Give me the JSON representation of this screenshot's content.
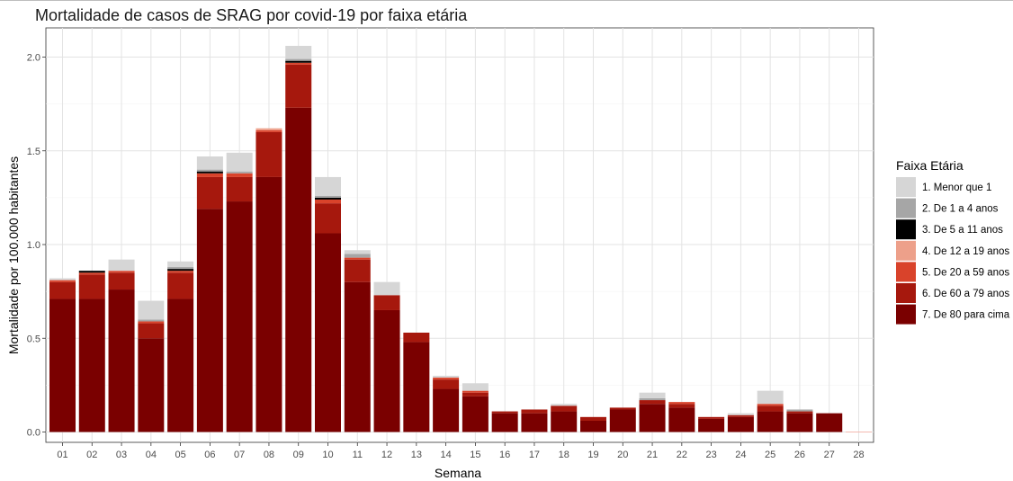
{
  "chart_data": {
    "type": "bar",
    "stacked": true,
    "title": "Mortalidade de casos de SRAG por covid-19 por faixa etária",
    "xlabel": "Semana",
    "ylabel": "Mortalidade por 100.000 habitantes",
    "ylim": [
      0,
      2.1
    ],
    "yticks": [
      "0.0",
      "0.5",
      "1.0",
      "1.5",
      "2.0"
    ],
    "grid": true,
    "legend_position": "right",
    "legend_title": "Faixa Etária",
    "categories": [
      "01",
      "02",
      "03",
      "04",
      "05",
      "06",
      "07",
      "08",
      "09",
      "10",
      "11",
      "12",
      "13",
      "14",
      "15",
      "16",
      "17",
      "18",
      "19",
      "20",
      "21",
      "22",
      "23",
      "24",
      "25",
      "26",
      "27",
      "28"
    ],
    "series": [
      {
        "name": "7. De 80 para cima",
        "color": "#7a0000",
        "values": [
          0.71,
          0.71,
          0.76,
          0.5,
          0.71,
          1.19,
          1.23,
          1.36,
          1.73,
          1.06,
          0.8,
          0.65,
          0.48,
          0.23,
          0.19,
          0.1,
          0.1,
          0.11,
          0.06,
          0.12,
          0.15,
          0.13,
          0.07,
          0.08,
          0.11,
          0.1,
          0.1,
          0.0
        ]
      },
      {
        "name": "6. De 60 a 79 anos",
        "color": "#a6180d",
        "values": [
          0.09,
          0.13,
          0.09,
          0.08,
          0.14,
          0.17,
          0.13,
          0.24,
          0.23,
          0.16,
          0.12,
          0.08,
          0.05,
          0.05,
          0.02,
          0.01,
          0.02,
          0.03,
          0.02,
          0.01,
          0.02,
          0.02,
          0.01,
          0.01,
          0.03,
          0.01,
          0.0,
          0.0
        ]
      },
      {
        "name": "5. De 20 a 59 anos",
        "color": "#d9432b",
        "values": [
          0.01,
          0.01,
          0.01,
          0.01,
          0.01,
          0.02,
          0.02,
          0.01,
          0.01,
          0.02,
          0.01,
          0.0,
          0.0,
          0.01,
          0.01,
          0.0,
          0.0,
          0.0,
          0.0,
          0.0,
          0.0,
          0.01,
          0.0,
          0.0,
          0.01,
          0.0,
          0.0,
          0.0
        ]
      },
      {
        "name": "4. De 12 a 19 anos",
        "color": "#eda08a",
        "values": [
          0.0,
          0.0,
          0.0,
          0.0,
          0.0,
          0.0,
          0.0,
          0.01,
          0.0,
          0.0,
          0.0,
          0.0,
          0.0,
          0.0,
          0.0,
          0.0,
          0.0,
          0.0,
          0.0,
          0.0,
          0.0,
          0.0,
          0.0,
          0.0,
          0.0,
          0.0,
          0.0,
          0.0
        ]
      },
      {
        "name": "3. De 5 a 11 anos",
        "color": "#000000",
        "values": [
          0.0,
          0.01,
          0.0,
          0.0,
          0.01,
          0.01,
          0.0,
          0.0,
          0.01,
          0.01,
          0.0,
          0.0,
          0.0,
          0.0,
          0.0,
          0.0,
          0.0,
          0.0,
          0.0,
          0.0,
          0.0,
          0.0,
          0.0,
          0.0,
          0.0,
          0.0,
          0.0,
          0.0
        ]
      },
      {
        "name": "2. De 1 a 4 anos",
        "color": "#a6a6a6",
        "values": [
          0.0,
          0.0,
          0.0,
          0.01,
          0.01,
          0.01,
          0.01,
          0.0,
          0.01,
          0.01,
          0.02,
          0.0,
          0.0,
          0.0,
          0.0,
          0.0,
          0.0,
          0.0,
          0.0,
          0.0,
          0.01,
          0.0,
          0.0,
          0.0,
          0.0,
          0.01,
          0.0,
          0.0
        ]
      },
      {
        "name": "1. Menor que 1",
        "color": "#d6d6d6",
        "values": [
          0.01,
          0.0,
          0.06,
          0.1,
          0.03,
          0.07,
          0.1,
          0.0,
          0.07,
          0.1,
          0.02,
          0.07,
          0.0,
          0.01,
          0.04,
          0.0,
          0.0,
          0.01,
          0.0,
          0.0,
          0.03,
          0.0,
          0.0,
          0.01,
          0.07,
          0.0,
          0.0,
          0.0
        ]
      }
    ],
    "legend_order": [
      "1. Menor que 1",
      "2. De 1 a 4 anos",
      "3. De 5 a 11 anos",
      "4. De 12 a 19 anos",
      "5. De 20 a 59 anos",
      "6. De 60 a 79 anos",
      "7. De 80 para cima"
    ]
  }
}
